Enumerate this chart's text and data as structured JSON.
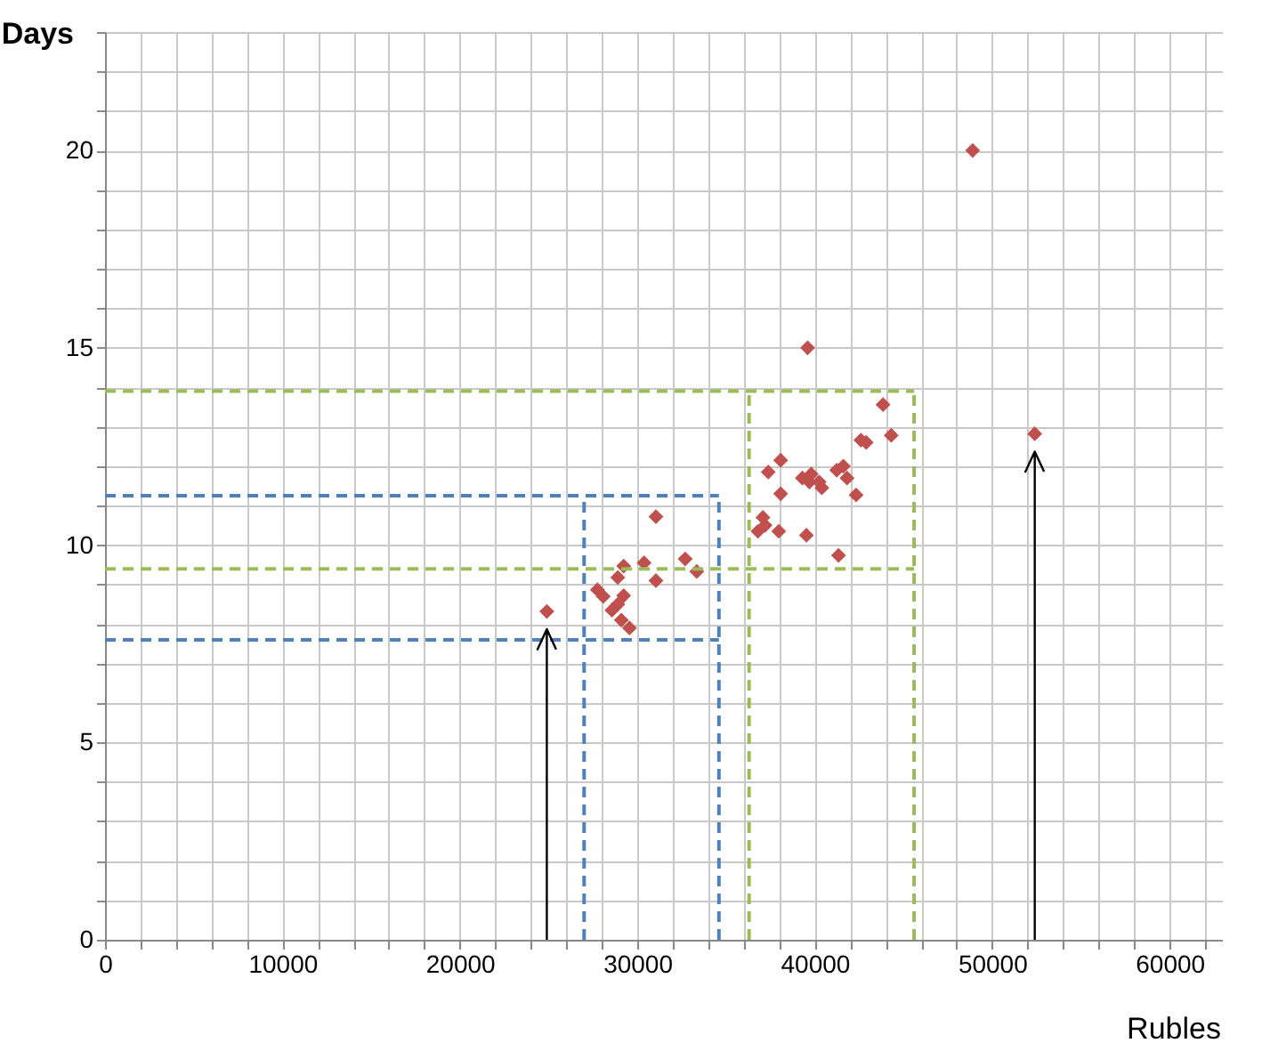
{
  "chart_data": {
    "type": "scatter",
    "xlabel": "Rubles",
    "ylabel": "Days",
    "x": [
      39600,
      43850,
      44310,
      42600,
      42900,
      38080,
      37380,
      39300,
      39700,
      40400,
      40250,
      39800,
      41610,
      41240,
      41820,
      38080,
      42330,
      37080,
      36800,
      37200,
      37970,
      39530,
      41340,
      31050,
      32700,
      33350,
      30380,
      29230,
      28900,
      31050,
      27750,
      28080,
      29230,
      28900,
      28570,
      29100,
      29560,
      24900,
      48900,
      52400
    ],
    "series": [
      {
        "color": "#c0504d",
        "values": [
          15.0,
          13.56,
          12.78,
          12.66,
          12.6,
          12.15,
          11.85,
          11.7,
          11.6,
          11.45,
          11.6,
          11.8,
          12.0,
          11.9,
          11.7,
          11.3,
          11.27,
          10.7,
          10.35,
          10.5,
          10.35,
          10.25,
          9.74,
          10.72,
          9.65,
          9.33,
          9.55,
          9.47,
          9.18,
          9.1,
          8.87,
          8.7,
          8.72,
          8.5,
          8.35,
          8.1,
          7.9,
          8.32,
          20.0,
          12.82
        ]
      }
    ],
    "marker": "diamond",
    "xlim": [
      0,
      63000
    ],
    "xticks": [
      0,
      {
        "value": 2000,
        "label": null
      },
      {
        "value": 4000,
        "label": null
      },
      {
        "value": 6000,
        "label": null
      },
      {
        "value": 8000,
        "label": null
      },
      10000,
      {
        "value": 12000,
        "label": null
      },
      {
        "value": 14000,
        "label": null
      },
      {
        "value": 16000,
        "label": null
      },
      {
        "value": 18000,
        "label": null
      },
      20000,
      {
        "value": 22000,
        "label": null
      },
      {
        "value": 24000,
        "label": null
      },
      {
        "value": 26000,
        "label": null
      },
      {
        "value": 28000,
        "label": null
      },
      30000,
      {
        "value": 32000,
        "label": null
      },
      {
        "value": 34000,
        "label": null
      },
      {
        "value": 36000,
        "label": null
      },
      {
        "value": 38000,
        "label": null
      },
      40000,
      {
        "value": 42000,
        "label": null
      },
      {
        "value": 44000,
        "label": null
      },
      {
        "value": 46000,
        "label": null
      },
      {
        "value": 48000,
        "label": null
      },
      50000,
      {
        "value": 52000,
        "label": null
      },
      {
        "value": 54000,
        "label": null
      },
      {
        "value": 56000,
        "label": null
      },
      {
        "value": 58000,
        "label": null
      },
      60000,
      {
        "value": 62000,
        "label": null
      }
    ],
    "ylim": [
      0,
      23
    ],
    "yticks": [
      0,
      {
        "value": 1,
        "label": null
      },
      {
        "value": 2,
        "label": null
      },
      {
        "value": 3,
        "label": null
      },
      {
        "value": 4,
        "label": null
      },
      5,
      {
        "value": 6,
        "label": null
      },
      {
        "value": 7,
        "label": null
      },
      {
        "value": 8,
        "label": null
      },
      {
        "value": 9,
        "label": null
      },
      10,
      {
        "value": 11,
        "label": null
      },
      {
        "value": 12,
        "label": null
      },
      {
        "value": 13,
        "label": null
      },
      {
        "value": 14,
        "label": null
      },
      15,
      {
        "value": 16,
        "label": null
      },
      {
        "value": 17,
        "label": null
      },
      {
        "value": 18,
        "label": null
      },
      {
        "value": 19,
        "label": null
      },
      20,
      {
        "value": 21,
        "label": null
      },
      {
        "value": 22,
        "label": null
      },
      {
        "value": 23,
        "label": null
      }
    ],
    "grid": true,
    "ref_lines": [
      {
        "axis": "y",
        "value": 7.6,
        "color": "#4f81bd",
        "line_style": "dashed"
      },
      {
        "axis": "y",
        "value": 11.25,
        "color": "#4f81bd",
        "line_style": "dashed"
      },
      {
        "axis": "x",
        "value": 27000,
        "color": "#4f81bd",
        "line_style": "dashed"
      },
      {
        "axis": "x",
        "value": 34600,
        "color": "#4f81bd",
        "line_style": "dashed"
      },
      {
        "axis": "y",
        "value": 9.4,
        "color": "#9bbb59",
        "line_style": "dashed"
      },
      {
        "axis": "y",
        "value": 13.9,
        "color": "#9bbb59",
        "line_style": "dashed"
      },
      {
        "axis": "x",
        "value": 36300,
        "color": "#9bbb59",
        "line_style": "dashed"
      },
      {
        "axis": "x",
        "value": 45600,
        "color": "#9bbb59",
        "line_style": "dashed"
      },
      {
        "axis": "x",
        "value": 24900,
        "color": "#000000",
        "line_style": "solid"
      },
      {
        "axis": "x",
        "value": 52400,
        "color": "#000000",
        "line_style": "solid"
      }
    ]
  }
}
